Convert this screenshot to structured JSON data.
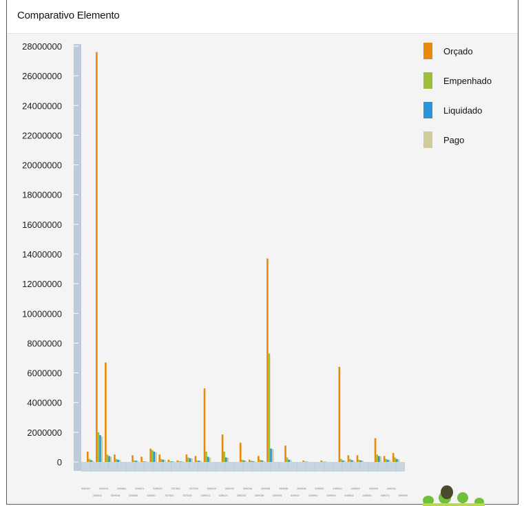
{
  "window": {
    "title": "Comparativo Elemento"
  },
  "chart_data": {
    "type": "bar",
    "title": "Comparativo Elemento",
    "ylim": [
      0,
      28000000
    ],
    "yticks": [
      0,
      2000000,
      4000000,
      6000000,
      8000000,
      10000000,
      12000000,
      14000000,
      16000000,
      18000000,
      20000000,
      22000000,
      24000000,
      26000000,
      28000000
    ],
    "ytick_labels": [
      "0",
      "2000000",
      "4000000",
      "6000000",
      "8000000",
      "10000000",
      "12000000",
      "14000000",
      "16000000",
      "18000000",
      "20000000",
      "22000000",
      "24000000",
      "26000000",
      "28000000"
    ],
    "legend_position": "right",
    "grid": false,
    "categories": [
      "339001",
      "339011",
      "339015",
      "339016",
      "339081",
      "339082",
      "339021",
      "339041",
      "339043",
      "337341",
      "337332",
      "337335",
      "337339",
      "339014",
      "339020",
      "339021",
      "339032",
      "339033",
      "339034",
      "339035",
      "339036",
      "339039",
      "339046",
      "339047",
      "339048",
      "339091",
      "339092",
      "339093",
      "449042",
      "449051",
      "449052",
      "449061",
      "449090",
      "449071",
      "449091",
      "999999"
    ],
    "series": [
      {
        "name": "Orçado",
        "color": "#e8890c",
        "values": [
          700000,
          27600000,
          6700000,
          500000,
          0,
          450000,
          350000,
          900000,
          500000,
          150000,
          100000,
          500000,
          400000,
          4950000,
          0,
          1850000,
          0,
          1300000,
          150000,
          400000,
          13700000,
          0,
          1100000,
          0,
          100000,
          0,
          100000,
          0,
          6400000,
          450000,
          450000,
          0,
          1600000,
          400000,
          600000,
          0
        ]
      },
      {
        "name": "Empenhado",
        "color": "#9cbf3c",
        "values": [
          200000,
          2000000,
          500000,
          200000,
          0,
          100000,
          50000,
          800000,
          200000,
          50000,
          50000,
          300000,
          100000,
          700000,
          0,
          700000,
          0,
          150000,
          80000,
          150000,
          7300000,
          0,
          300000,
          0,
          30000,
          0,
          30000,
          0,
          200000,
          200000,
          150000,
          0,
          500000,
          200000,
          300000,
          0
        ]
      },
      {
        "name": "Liquidado",
        "color": "#2b93d6",
        "values": [
          120000,
          1800000,
          400000,
          150000,
          0,
          80000,
          30000,
          700000,
          150000,
          40000,
          30000,
          250000,
          80000,
          350000,
          0,
          300000,
          0,
          100000,
          50000,
          100000,
          900000,
          0,
          150000,
          0,
          20000,
          0,
          20000,
          0,
          100000,
          120000,
          100000,
          0,
          400000,
          150000,
          200000,
          0
        ]
      },
      {
        "name": "Pago",
        "color": "#cfcc9a",
        "values": [
          100000,
          1700000,
          350000,
          130000,
          0,
          70000,
          25000,
          650000,
          130000,
          35000,
          25000,
          230000,
          70000,
          300000,
          0,
          280000,
          0,
          90000,
          45000,
          90000,
          850000,
          0,
          130000,
          0,
          15000,
          0,
          15000,
          0,
          90000,
          110000,
          90000,
          0,
          380000,
          140000,
          180000,
          0
        ]
      }
    ]
  }
}
